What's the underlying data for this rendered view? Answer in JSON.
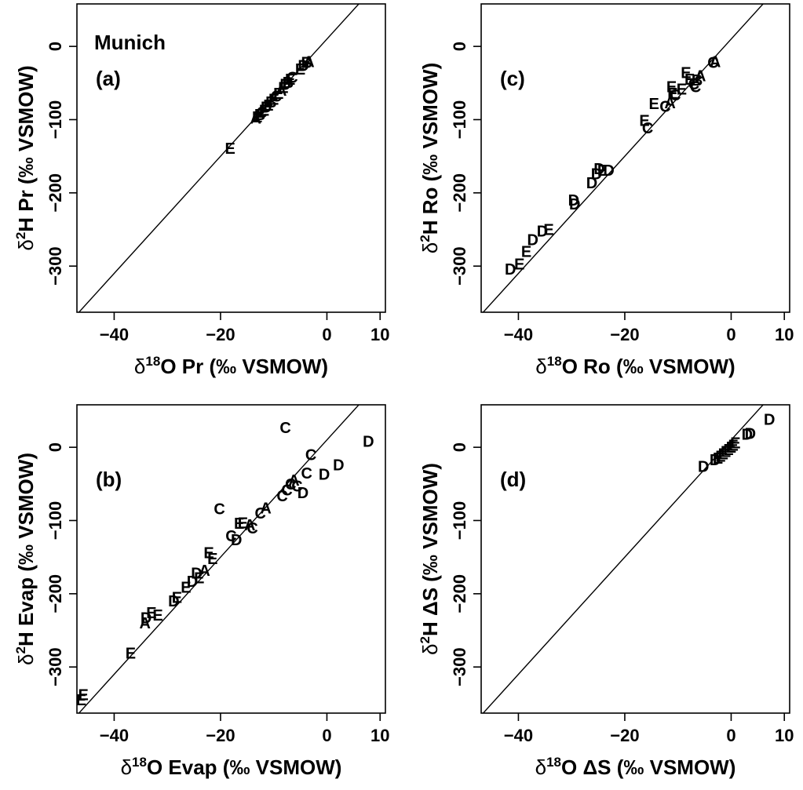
{
  "figure": {
    "site_label": "Munich",
    "axis_unit": "(‰ VSMOW)"
  },
  "chart_data": [
    {
      "id": "a",
      "type": "scatter",
      "panel_label": "(a)",
      "xlabel": {
        "delta": "δ",
        "sup": "18",
        "text": "O Pr (‰ VSMOW)"
      },
      "ylabel": {
        "delta": "δ",
        "sup": "2",
        "text": "H Pr (‰ VSMOW)"
      },
      "xlim": [
        -47,
        11
      ],
      "ylim": [
        -363,
        58
      ],
      "xticks": [
        -40,
        -20,
        0,
        10
      ],
      "xtick_labels": [
        "−40",
        "−20",
        "0",
        "10"
      ],
      "yticks": [
        0,
        -100,
        -200,
        -300
      ],
      "ytick_labels": [
        "0",
        "−100",
        "−200",
        "−300"
      ],
      "reference_line": {
        "slope": 8,
        "intercept": 10
      },
      "points": [
        {
          "x": -18.2,
          "y": -139,
          "label": "E"
        },
        {
          "x": -13.4,
          "y": -98,
          "label": "A"
        },
        {
          "x": -13.1,
          "y": -96,
          "label": "E"
        },
        {
          "x": -12.6,
          "y": -93,
          "label": "B"
        },
        {
          "x": -12.2,
          "y": -90,
          "label": "C"
        },
        {
          "x": -11.8,
          "y": -87,
          "label": "E"
        },
        {
          "x": -11.4,
          "y": -83,
          "label": "D"
        },
        {
          "x": -11.0,
          "y": -80,
          "label": "E"
        },
        {
          "x": -10.5,
          "y": -76,
          "label": "B"
        },
        {
          "x": -10.0,
          "y": -72,
          "label": "E"
        },
        {
          "x": -9.5,
          "y": -68,
          "label": "C"
        },
        {
          "x": -9.1,
          "y": -64,
          "label": "E"
        },
        {
          "x": -8.6,
          "y": -60,
          "label": "A"
        },
        {
          "x": -8.2,
          "y": -56,
          "label": "E"
        },
        {
          "x": -7.8,
          "y": -52,
          "label": "D"
        },
        {
          "x": -7.3,
          "y": -49,
          "label": "B"
        },
        {
          "x": -6.9,
          "y": -45,
          "label": "E"
        },
        {
          "x": -6.5,
          "y": -42,
          "label": "C"
        },
        {
          "x": -5.0,
          "y": -31,
          "label": "E"
        },
        {
          "x": -4.4,
          "y": -26,
          "label": "D"
        },
        {
          "x": -3.8,
          "y": -22,
          "label": "B"
        },
        {
          "x": -3.4,
          "y": -21,
          "label": "A"
        }
      ]
    },
    {
      "id": "c",
      "type": "scatter",
      "panel_label": "(c)",
      "xlabel": {
        "delta": "δ",
        "sup": "18",
        "text": "O Ro (‰ VSMOW)"
      },
      "ylabel": {
        "delta": "δ",
        "sup": "2",
        "text": "H Ro (‰ VSMOW)"
      },
      "xlim": [
        -47,
        11
      ],
      "ylim": [
        -363,
        58
      ],
      "xticks": [
        -40,
        -20,
        0,
        10
      ],
      "xtick_labels": [
        "−40",
        "−20",
        "0",
        "10"
      ],
      "yticks": [
        0,
        -100,
        -200,
        -300
      ],
      "ytick_labels": [
        "0",
        "−100",
        "−200",
        "−300"
      ],
      "reference_line": {
        "slope": 8,
        "intercept": 10
      },
      "points": [
        {
          "x": -41.5,
          "y": -304,
          "label": "D"
        },
        {
          "x": -39.8,
          "y": -297,
          "label": "E"
        },
        {
          "x": -38.5,
          "y": -280,
          "label": "E"
        },
        {
          "x": -37.3,
          "y": -264,
          "label": "D"
        },
        {
          "x": -35.5,
          "y": -252,
          "label": "D"
        },
        {
          "x": -34.3,
          "y": -250,
          "label": "E"
        },
        {
          "x": -29.6,
          "y": -210,
          "label": "D"
        },
        {
          "x": -29.4,
          "y": -215,
          "label": "D"
        },
        {
          "x": -26.2,
          "y": -186,
          "label": "D"
        },
        {
          "x": -25.3,
          "y": -174,
          "label": "D"
        },
        {
          "x": -24.8,
          "y": -167,
          "label": "D"
        },
        {
          "x": -24.2,
          "y": -169,
          "label": "E"
        },
        {
          "x": -23.0,
          "y": -169,
          "label": "D"
        },
        {
          "x": -16.3,
          "y": -101,
          "label": "E"
        },
        {
          "x": -15.7,
          "y": -111,
          "label": "C"
        },
        {
          "x": -14.5,
          "y": -78,
          "label": "E"
        },
        {
          "x": -12.4,
          "y": -82,
          "label": "C"
        },
        {
          "x": -11.5,
          "y": -77,
          "label": "A"
        },
        {
          "x": -11.2,
          "y": -55,
          "label": "E"
        },
        {
          "x": -11.0,
          "y": -64,
          "label": "E"
        },
        {
          "x": -10.5,
          "y": -66,
          "label": "C"
        },
        {
          "x": -9.3,
          "y": -58,
          "label": "E"
        },
        {
          "x": -8.5,
          "y": -36,
          "label": "E"
        },
        {
          "x": -7.8,
          "y": -45,
          "label": "E"
        },
        {
          "x": -7.0,
          "y": -51,
          "label": "C"
        },
        {
          "x": -6.7,
          "y": -55,
          "label": "C"
        },
        {
          "x": -6.4,
          "y": -46,
          "label": "B"
        },
        {
          "x": -5.8,
          "y": -40,
          "label": "A"
        },
        {
          "x": -3.0,
          "y": -21,
          "label": "A"
        },
        {
          "x": -3.4,
          "y": -22,
          "label": "C"
        }
      ]
    },
    {
      "id": "b",
      "type": "scatter",
      "panel_label": "(b)",
      "xlabel": {
        "delta": "δ",
        "sup": "18",
        "text": "O Evap (‰ VSMOW)"
      },
      "ylabel": {
        "delta": "δ",
        "sup": "2",
        "text": "H Evap (‰ VSMOW)"
      },
      "xlim": [
        -47,
        11
      ],
      "ylim": [
        -363,
        58
      ],
      "xticks": [
        -40,
        -20,
        0,
        10
      ],
      "xtick_labels": [
        "−40",
        "−20",
        "0",
        "10"
      ],
      "yticks": [
        0,
        -100,
        -200,
        -300
      ],
      "ytick_labels": [
        "0",
        "−100",
        "−200",
        "−300"
      ],
      "reference_line": {
        "slope": 8,
        "intercept": 10
      },
      "points": [
        {
          "x": -46.2,
          "y": -345,
          "label": "E"
        },
        {
          "x": -45.8,
          "y": -338,
          "label": "E"
        },
        {
          "x": -36.9,
          "y": -281,
          "label": "E"
        },
        {
          "x": -34.2,
          "y": -240,
          "label": "A"
        },
        {
          "x": -34.0,
          "y": -233,
          "label": "D"
        },
        {
          "x": -33.0,
          "y": -226,
          "label": "E"
        },
        {
          "x": -31.8,
          "y": -229,
          "label": "E"
        },
        {
          "x": -28.8,
          "y": -210,
          "label": "D"
        },
        {
          "x": -28.2,
          "y": -205,
          "label": "E"
        },
        {
          "x": -26.5,
          "y": -191,
          "label": "E"
        },
        {
          "x": -25.3,
          "y": -183,
          "label": "D"
        },
        {
          "x": -24.5,
          "y": -172,
          "label": "D"
        },
        {
          "x": -24.0,
          "y": -178,
          "label": "E"
        },
        {
          "x": -23.0,
          "y": -168,
          "label": "A"
        },
        {
          "x": -22.2,
          "y": -144,
          "label": "E"
        },
        {
          "x": -21.5,
          "y": -152,
          "label": "E"
        },
        {
          "x": -20.2,
          "y": -84,
          "label": "C"
        },
        {
          "x": -18.0,
          "y": -121,
          "label": "C"
        },
        {
          "x": -17.0,
          "y": -126,
          "label": "D"
        },
        {
          "x": -16.5,
          "y": -104,
          "label": "E"
        },
        {
          "x": -15.8,
          "y": -103,
          "label": "E"
        },
        {
          "x": -14.5,
          "y": -106,
          "label": "A"
        },
        {
          "x": -14.0,
          "y": -110,
          "label": "C"
        },
        {
          "x": -12.5,
          "y": -90,
          "label": "C"
        },
        {
          "x": -11.5,
          "y": -83,
          "label": "A"
        },
        {
          "x": -8.4,
          "y": -66,
          "label": "C"
        },
        {
          "x": -7.5,
          "y": -58,
          "label": "C"
        },
        {
          "x": -6.8,
          "y": -50,
          "label": "C"
        },
        {
          "x": -6.2,
          "y": -45,
          "label": "A"
        },
        {
          "x": -5.6,
          "y": -53,
          "label": "C"
        },
        {
          "x": -4.5,
          "y": -62,
          "label": "D"
        },
        {
          "x": -3.8,
          "y": -35,
          "label": "C"
        },
        {
          "x": -7.8,
          "y": 27,
          "label": "C"
        },
        {
          "x": -3.0,
          "y": -10,
          "label": "C"
        },
        {
          "x": -0.5,
          "y": -37,
          "label": "D"
        },
        {
          "x": 2.2,
          "y": -24,
          "label": "D"
        },
        {
          "x": 7.8,
          "y": 8,
          "label": "D"
        }
      ]
    },
    {
      "id": "d",
      "type": "scatter",
      "panel_label": "(d)",
      "xlabel": {
        "delta": "δ",
        "sup": "18",
        "text": "O ΔS (‰ VSMOW)"
      },
      "ylabel": {
        "delta": "δ",
        "sup": "2",
        "text": "H ΔS (‰ VSMOW)"
      },
      "xlim": [
        -47,
        11
      ],
      "ylim": [
        -363,
        58
      ],
      "xticks": [
        -40,
        -20,
        0,
        10
      ],
      "xtick_labels": [
        "−40",
        "−20",
        "0",
        "10"
      ],
      "yticks": [
        0,
        -100,
        -200,
        -300
      ],
      "ytick_labels": [
        "0",
        "−100",
        "−200",
        "−300"
      ],
      "reference_line": {
        "slope": 8,
        "intercept": 10
      },
      "points": [
        {
          "x": -5.2,
          "y": -26,
          "label": "D"
        },
        {
          "x": -3.0,
          "y": -17,
          "label": "D"
        },
        {
          "x": -2.5,
          "y": -15,
          "label": "E"
        },
        {
          "x": -2.0,
          "y": -12,
          "label": "E"
        },
        {
          "x": -1.5,
          "y": -9,
          "label": "E"
        },
        {
          "x": -1.0,
          "y": -6,
          "label": "E"
        },
        {
          "x": -0.5,
          "y": -3,
          "label": "E"
        },
        {
          "x": 0.0,
          "y": 0,
          "label": "E"
        },
        {
          "x": 0.4,
          "y": 3,
          "label": "E"
        },
        {
          "x": 0.8,
          "y": 6,
          "label": "E"
        },
        {
          "x": 3.0,
          "y": 18,
          "label": "D"
        },
        {
          "x": 3.6,
          "y": 19,
          "label": "D"
        },
        {
          "x": 7.2,
          "y": 38,
          "label": "D"
        }
      ]
    }
  ]
}
